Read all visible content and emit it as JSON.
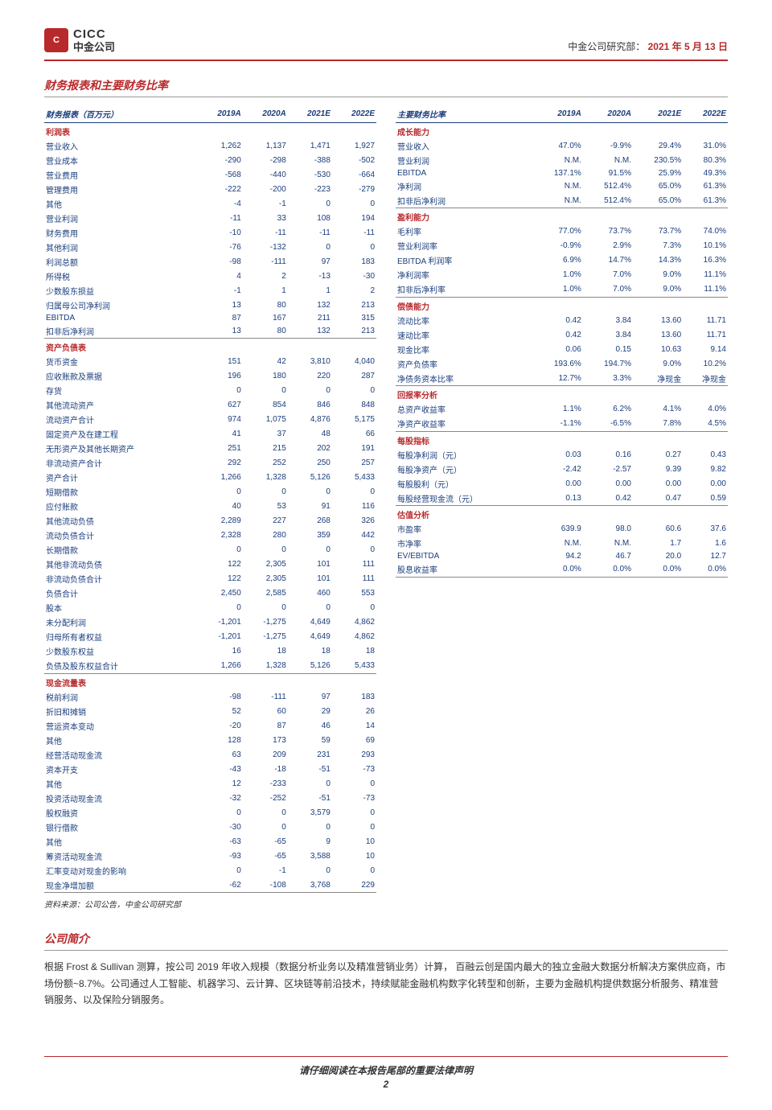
{
  "header": {
    "logo_en": "CICC",
    "logo_cn": "中金公司",
    "dept": "中金公司研究部：",
    "date": "2021 年 5 月 13 日"
  },
  "section_title_main": "财务报表和主要财务比率",
  "left_table": {
    "header": [
      "财务报表（百万元）",
      "2019A",
      "2020A",
      "2021E",
      "2022E"
    ],
    "groups": [
      {
        "cat": "利润表",
        "rows": [
          [
            "营业收入",
            "1,262",
            "1,137",
            "1,471",
            "1,927"
          ],
          [
            "营业成本",
            "-290",
            "-298",
            "-388",
            "-502"
          ],
          [
            "营业费用",
            "-568",
            "-440",
            "-530",
            "-664"
          ],
          [
            "管理费用",
            "-222",
            "-200",
            "-223",
            "-279"
          ],
          [
            "其他",
            "-4",
            "-1",
            "0",
            "0"
          ],
          [
            "营业利润",
            "-11",
            "33",
            "108",
            "194"
          ],
          [
            "财务费用",
            "-10",
            "-11",
            "-11",
            "-11"
          ],
          [
            "其他利润",
            "-76",
            "-132",
            "0",
            "0"
          ],
          [
            "利润总额",
            "-98",
            "-111",
            "97",
            "183"
          ],
          [
            "所得税",
            "4",
            "2",
            "-13",
            "-30"
          ],
          [
            "少数股东损益",
            "-1",
            "1",
            "1",
            "2"
          ],
          [
            "归属母公司净利润",
            "13",
            "80",
            "132",
            "213"
          ],
          [
            "EBITDA",
            "87",
            "167",
            "211",
            "315"
          ],
          [
            "扣非后净利润",
            "13",
            "80",
            "132",
            "213"
          ]
        ]
      },
      {
        "cat": "资产负债表",
        "rows": [
          [
            "货币资金",
            "151",
            "42",
            "3,810",
            "4,040"
          ],
          [
            "应收账款及票据",
            "196",
            "180",
            "220",
            "287"
          ],
          [
            "存货",
            "0",
            "0",
            "0",
            "0"
          ],
          [
            "其他流动资产",
            "627",
            "854",
            "846",
            "848"
          ],
          [
            "流动资产合计",
            "974",
            "1,075",
            "4,876",
            "5,175"
          ],
          [
            "固定资产及在建工程",
            "41",
            "37",
            "48",
            "66"
          ],
          [
            "无形资产及其他长期资产",
            "251",
            "215",
            "202",
            "191"
          ],
          [
            "非流动资产合计",
            "292",
            "252",
            "250",
            "257"
          ],
          [
            "资产合计",
            "1,266",
            "1,328",
            "5,126",
            "5,433"
          ],
          [
            "短期借款",
            "0",
            "0",
            "0",
            "0"
          ],
          [
            "应付账款",
            "40",
            "53",
            "91",
            "116"
          ],
          [
            "其他流动负债",
            "2,289",
            "227",
            "268",
            "326"
          ],
          [
            "流动负债合计",
            "2,328",
            "280",
            "359",
            "442"
          ],
          [
            "长期借款",
            "0",
            "0",
            "0",
            "0"
          ],
          [
            "其他非流动负债",
            "122",
            "2,305",
            "101",
            "111"
          ],
          [
            "非流动负债合计",
            "122",
            "2,305",
            "101",
            "111"
          ],
          [
            "负债合计",
            "2,450",
            "2,585",
            "460",
            "553"
          ],
          [
            "股本",
            "0",
            "0",
            "0",
            "0"
          ],
          [
            "未分配利润",
            "-1,201",
            "-1,275",
            "4,649",
            "4,862"
          ],
          [
            "归母所有者权益",
            "-1,201",
            "-1,275",
            "4,649",
            "4,862"
          ],
          [
            "少数股东权益",
            "16",
            "18",
            "18",
            "18"
          ],
          [
            "负债及股东权益合计",
            "1,266",
            "1,328",
            "5,126",
            "5,433"
          ]
        ]
      },
      {
        "cat": "现金流量表",
        "rows": [
          [
            "税前利润",
            "-98",
            "-111",
            "97",
            "183"
          ],
          [
            "折旧和摊销",
            "52",
            "60",
            "29",
            "26"
          ],
          [
            "营运资本变动",
            "-20",
            "87",
            "46",
            "14"
          ],
          [
            "其他",
            "128",
            "173",
            "59",
            "69"
          ],
          [
            "经营活动现金流",
            "63",
            "209",
            "231",
            "293"
          ],
          [
            "资本开支",
            "-43",
            "-18",
            "-51",
            "-73"
          ],
          [
            "其他",
            "12",
            "-233",
            "0",
            "0"
          ],
          [
            "投资活动现金流",
            "-32",
            "-252",
            "-51",
            "-73"
          ],
          [
            "股权融资",
            "0",
            "0",
            "3,579",
            "0"
          ],
          [
            "银行借款",
            "-30",
            "0",
            "0",
            "0"
          ],
          [
            "其他",
            "-63",
            "-65",
            "9",
            "10"
          ],
          [
            "筹资活动现金流",
            "-93",
            "-65",
            "3,588",
            "10"
          ],
          [
            "汇率变动对现金的影响",
            "0",
            "-1",
            "0",
            "0"
          ],
          [
            "现金净增加额",
            "-62",
            "-108",
            "3,768",
            "229"
          ]
        ]
      }
    ]
  },
  "right_table": {
    "header": [
      "主要财务比率",
      "2019A",
      "2020A",
      "2021E",
      "2022E"
    ],
    "groups": [
      {
        "cat": "成长能力",
        "rows": [
          [
            "营业收入",
            "47.0%",
            "-9.9%",
            "29.4%",
            "31.0%"
          ],
          [
            "营业利润",
            "N.M.",
            "N.M.",
            "230.5%",
            "80.3%"
          ],
          [
            "EBITDA",
            "137.1%",
            "91.5%",
            "25.9%",
            "49.3%"
          ],
          [
            "净利润",
            "N.M.",
            "512.4%",
            "65.0%",
            "61.3%"
          ],
          [
            "扣非后净利润",
            "N.M.",
            "512.4%",
            "65.0%",
            "61.3%"
          ]
        ]
      },
      {
        "cat": "盈利能力",
        "rows": [
          [
            "毛利率",
            "77.0%",
            "73.7%",
            "73.7%",
            "74.0%"
          ],
          [
            "营业利润率",
            "-0.9%",
            "2.9%",
            "7.3%",
            "10.1%"
          ],
          [
            "EBITDA 利润率",
            "6.9%",
            "14.7%",
            "14.3%",
            "16.3%"
          ],
          [
            "净利润率",
            "1.0%",
            "7.0%",
            "9.0%",
            "11.1%"
          ],
          [
            "扣非后净利率",
            "1.0%",
            "7.0%",
            "9.0%",
            "11.1%"
          ]
        ]
      },
      {
        "cat": "偿债能力",
        "rows": [
          [
            "流动比率",
            "0.42",
            "3.84",
            "13.60",
            "11.71"
          ],
          [
            "速动比率",
            "0.42",
            "3.84",
            "13.60",
            "11.71"
          ],
          [
            "现金比率",
            "0.06",
            "0.15",
            "10.63",
            "9.14"
          ],
          [
            "资产负债率",
            "193.6%",
            "194.7%",
            "9.0%",
            "10.2%"
          ],
          [
            "净债务资本比率",
            "12.7%",
            "3.3%",
            "净现金",
            "净现金"
          ]
        ]
      },
      {
        "cat": "回报率分析",
        "rows": [
          [
            "总资产收益率",
            "1.1%",
            "6.2%",
            "4.1%",
            "4.0%"
          ],
          [
            "净资产收益率",
            "-1.1%",
            "-6.5%",
            "7.8%",
            "4.5%"
          ]
        ]
      },
      {
        "cat": "每股指标",
        "rows": [
          [
            "每股净利润（元）",
            "0.03",
            "0.16",
            "0.27",
            "0.43"
          ],
          [
            "每股净资产（元）",
            "-2.42",
            "-2.57",
            "9.39",
            "9.82"
          ],
          [
            "每股股利（元）",
            "0.00",
            "0.00",
            "0.00",
            "0.00"
          ],
          [
            "每股经营现金流（元）",
            "0.13",
            "0.42",
            "0.47",
            "0.59"
          ]
        ]
      },
      {
        "cat": "估值分析",
        "rows": [
          [
            "市盈率",
            "639.9",
            "98.0",
            "60.6",
            "37.6"
          ],
          [
            "市净率",
            "N.M.",
            "N.M.",
            "1.7",
            "1.6"
          ],
          [
            "EV/EBITDA",
            "94.2",
            "46.7",
            "20.0",
            "12.7"
          ],
          [
            "股息收益率",
            "0.0%",
            "0.0%",
            "0.0%",
            "0.0%"
          ]
        ]
      }
    ]
  },
  "source": "资料来源：公司公告，中金公司研究部",
  "intro_title": "公司简介",
  "intro_text": "根据 Frost & Sullivan 测算，按公司 2019 年收入规模（数据分析业务以及精准营销业务）计算，    百融云创是国内最大的独立金融大数据分析解决方案供应商，市场份额~8.7%。公司通过人工智能、机器学习、云计算、区块链等前沿技术，持续赋能金融机构数字化转型和创新，主要为金融机构提供数据分析服务、精准营销服务、以及保险分销服务。",
  "footer_text": "请仔细阅读在本报告尾部的重要法律声明",
  "page_num": "2",
  "colors": {
    "primary": "#b8292b",
    "value": "#1a3d7c",
    "border": "#888"
  }
}
